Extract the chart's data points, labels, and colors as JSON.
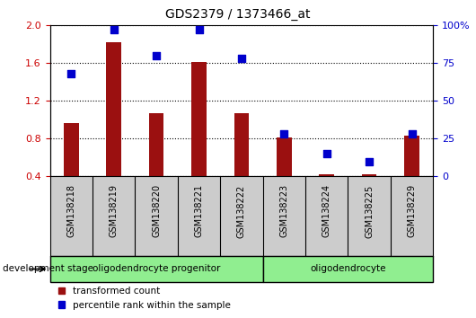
{
  "title": "GDS2379 / 1373466_at",
  "samples": [
    "GSM138218",
    "GSM138219",
    "GSM138220",
    "GSM138221",
    "GSM138222",
    "GSM138223",
    "GSM138224",
    "GSM138225",
    "GSM138229"
  ],
  "bar_values": [
    0.97,
    1.82,
    1.07,
    1.61,
    1.07,
    0.81,
    0.42,
    0.42,
    0.83
  ],
  "percentile_values": [
    68,
    97,
    80,
    97,
    78,
    28,
    15,
    10,
    28
  ],
  "ylim_left": [
    0.4,
    2.0
  ],
  "ylim_right": [
    0,
    100
  ],
  "yticks_left": [
    0.4,
    0.8,
    1.2,
    1.6,
    2.0
  ],
  "yticks_right": [
    0,
    25,
    50,
    75,
    100
  ],
  "bar_color": "#9B1010",
  "dot_color": "#0000CC",
  "grid_color": "#000000",
  "group1_label": "oligodendrocyte progenitor",
  "group2_label": "oligodendrocyte",
  "group_color": "#90EE90",
  "tick_bg_color": "#CCCCCC",
  "legend_items": [
    {
      "label": "transformed count",
      "color": "#9B1010"
    },
    {
      "label": "percentile rank within the sample",
      "color": "#0000CC"
    }
  ],
  "dev_stage_label": "development stage",
  "tick_label_color_left": "#CC0000",
  "tick_label_color_right": "#0000CC",
  "bar_width": 0.35,
  "dot_size": 35,
  "group1_count": 5,
  "group2_count": 4
}
